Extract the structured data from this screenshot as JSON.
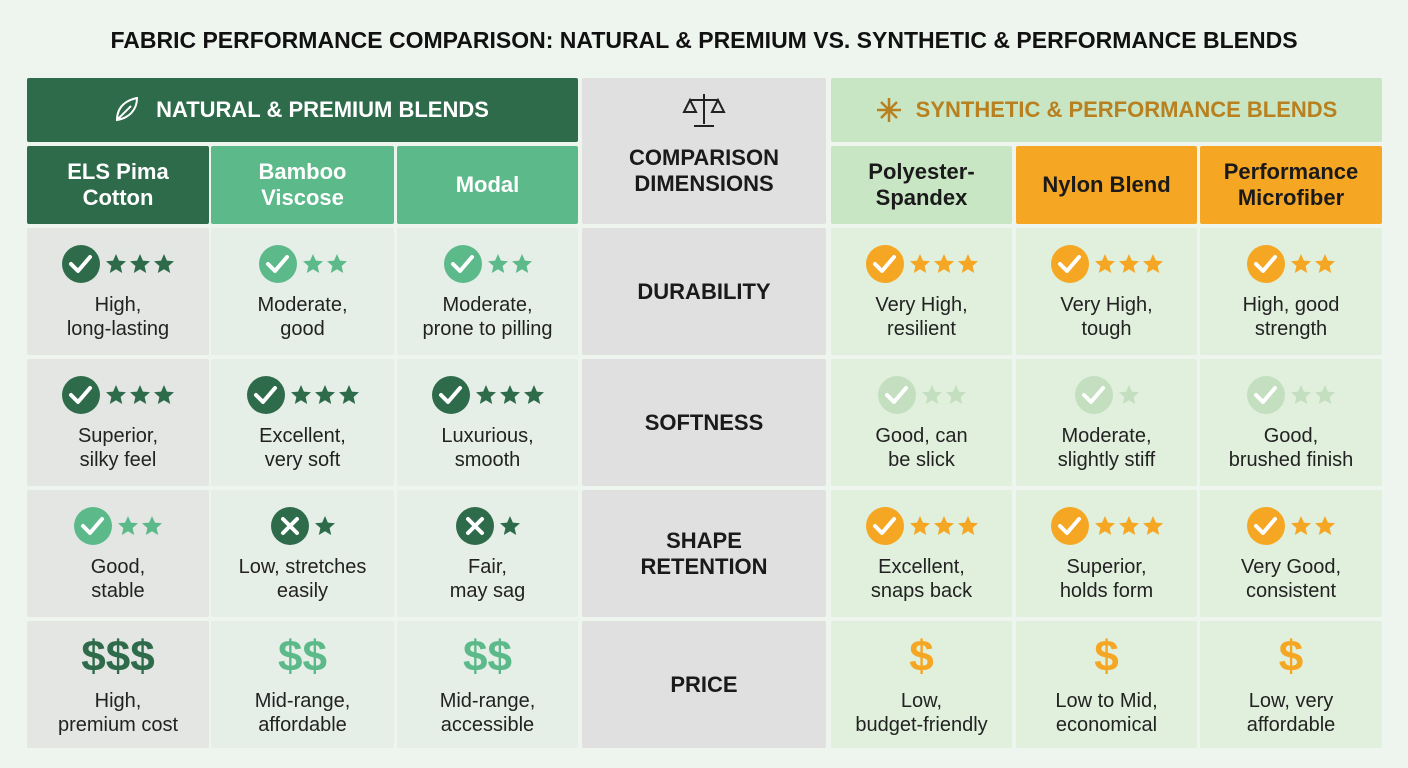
{
  "title": "FABRIC PERFORMANCE COMPARISON: NATURAL & PREMIUM VS. SYNTHETIC & PERFORMANCE BLENDS",
  "comparison_header": "COMPARISON DIMENSIONS",
  "dimensions": [
    "DURABILITY",
    "SOFTNESS",
    "SHAPE\nRETENTION",
    "PRICE"
  ],
  "groups": [
    {
      "title": "NATURAL & PREMIUM BLENDS",
      "columns": [
        "ELS Pima\nCotton",
        "Bamboo\nViscose",
        "Modal"
      ],
      "rows": [
        [
          {
            "icon": "check",
            "stars": 3,
            "color": "#2e6b4a",
            "text": "High,\nlong-lasting"
          },
          {
            "icon": "check",
            "stars": 2,
            "color": "#5cb98a",
            "text": "Moderate,\ngood"
          },
          {
            "icon": "check",
            "stars": 2,
            "color": "#5cb98a",
            "text": "Moderate,\nprone to pilling"
          }
        ],
        [
          {
            "icon": "check",
            "stars": 3,
            "color": "#2e6b4a",
            "text": "Superior,\nsilky feel"
          },
          {
            "icon": "check",
            "stars": 3,
            "color": "#2e6b4a",
            "text": "Excellent,\nvery soft"
          },
          {
            "icon": "check",
            "stars": 3,
            "color": "#2e6b4a",
            "text": "Luxurious,\nsmooth"
          }
        ],
        [
          {
            "icon": "check",
            "stars": 2,
            "color": "#5cb98a",
            "text": "Good,\nstable"
          },
          {
            "icon": "cross",
            "stars": 1,
            "color": "#2e6b4a",
            "text": "Low, stretches\neasily"
          },
          {
            "icon": "cross",
            "stars": 1,
            "color": "#2e6b4a",
            "text": "Fair,\nmay sag"
          }
        ],
        [
          {
            "price": "$$$",
            "color": "#2e6b4a",
            "text": "High,\npremium cost"
          },
          {
            "price": "$$",
            "color": "#5cb98a",
            "text": "Mid-range,\naffordable"
          },
          {
            "price": "$$",
            "color": "#5cb98a",
            "text": "Mid-range,\naccessible"
          }
        ]
      ]
    },
    {
      "title": "SYNTHETIC & PERFORMANCE BLENDS",
      "columns": [
        "Polyester-\nSpandex",
        "Nylon Blend",
        "Performance\nMicrofiber"
      ],
      "rows": [
        [
          {
            "icon": "check",
            "stars": 3,
            "color": "#f5a623",
            "text": "Very High,\nresilient"
          },
          {
            "icon": "check",
            "stars": 3,
            "color": "#f5a623",
            "text": "Very High,\ntough"
          },
          {
            "icon": "check",
            "stars": 2,
            "color": "#f5a623",
            "text": "High, good\nstrength"
          }
        ],
        [
          {
            "icon": "check",
            "stars": 2,
            "color": "#c3dfc0",
            "text": "Good, can\nbe slick"
          },
          {
            "icon": "check",
            "stars": 1,
            "color": "#c3dfc0",
            "text": "Moderate,\nslightly stiff"
          },
          {
            "icon": "check",
            "stars": 2,
            "color": "#c3dfc0",
            "text": "Good,\nbrushed finish"
          }
        ],
        [
          {
            "icon": "check",
            "stars": 3,
            "color": "#f5a623",
            "text": "Excellent,\nsnaps back"
          },
          {
            "icon": "check",
            "stars": 3,
            "color": "#f5a623",
            "text": "Superior,\nholds form"
          },
          {
            "icon": "check",
            "stars": 2,
            "color": "#f5a623",
            "text": "Very Good,\nconsistent"
          }
        ],
        [
          {
            "price": "$",
            "color": "#f5a623",
            "text": "Low,\nbudget-friendly"
          },
          {
            "price": "$",
            "color": "#f5a623",
            "text": "Low to Mid,\neconomical"
          },
          {
            "price": "$",
            "color": "#f5a623",
            "text": "Low, very\naffordable"
          }
        ]
      ]
    }
  ]
}
